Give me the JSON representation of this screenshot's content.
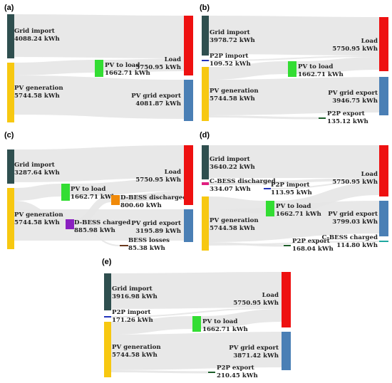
{
  "colors": {
    "grid": "#2f4f4f",
    "pv": "#f7c811",
    "load": "#ee1111",
    "export": "#4a7fb5",
    "pvload": "#33dd33",
    "p2pimport": "#2233bb",
    "p2pexport": "#1d5e2a",
    "dbess_dis": "#f08a0a",
    "dbess_chg": "#8a20c0",
    "bess_loss": "#6b3a1e",
    "cbess_dis": "#e02080",
    "cbess_chg": "#20a8a0",
    "link": "#e6e6e6"
  },
  "panels": [
    {
      "label": "(a)",
      "nodes": [
        {
          "key": "grid",
          "name": "Grid import",
          "value": "4088.24 kWh"
        },
        {
          "key": "pv",
          "name": "PV generation",
          "value": "5744.58 kWh"
        },
        {
          "key": "pvload",
          "name": "PV to load",
          "value": "1662.71 kWh"
        },
        {
          "key": "load",
          "name": "Load",
          "value": "5750.95 kWh"
        },
        {
          "key": "export",
          "name": "PV grid export",
          "value": "4081.87 kWh"
        }
      ]
    },
    {
      "label": "(b)",
      "nodes": [
        {
          "key": "grid",
          "name": "Grid import",
          "value": "3978.72 kWh"
        },
        {
          "key": "p2pimport",
          "name": "P2P import",
          "value": "109.52 kWh"
        },
        {
          "key": "pv",
          "name": "PV generation",
          "value": "5744.58 kWh"
        },
        {
          "key": "pvload",
          "name": "PV to load",
          "value": "1662.71 kWh"
        },
        {
          "key": "load",
          "name": "Load",
          "value": "5750.95 kWh"
        },
        {
          "key": "export",
          "name": "PV grid export",
          "value": "3946.75 kWh"
        },
        {
          "key": "p2pexport",
          "name": "P2P export",
          "value": "135.12 kWh"
        }
      ]
    },
    {
      "label": "(c)",
      "nodes": [
        {
          "key": "grid",
          "name": "Grid import",
          "value": "3287.64 kWh"
        },
        {
          "key": "pv",
          "name": "PV generation",
          "value": "5744.58 kWh"
        },
        {
          "key": "pvload",
          "name": "PV to load",
          "value": "1662.71 kWh"
        },
        {
          "key": "dbess_dis",
          "name": "D-BESS discharged",
          "value": "800.60 kWh"
        },
        {
          "key": "dbess_chg",
          "name": "D-BESS charged",
          "value": "885.98 kWh"
        },
        {
          "key": "load",
          "name": "Load",
          "value": "5750.95 kWh"
        },
        {
          "key": "export",
          "name": "PV grid export",
          "value": "3195.89 kWh"
        },
        {
          "key": "bess_loss",
          "name": "BESS losses",
          "value": "85.38 kWh"
        }
      ]
    },
    {
      "label": "(d)",
      "nodes": [
        {
          "key": "grid",
          "name": "Grid import",
          "value": "3640.22 kWh"
        },
        {
          "key": "cbess_dis",
          "name": "C-BESS discharged",
          "value": "334.07 kWh"
        },
        {
          "key": "p2pimport",
          "name": "P2P import",
          "value": "113.95 kWh"
        },
        {
          "key": "pv",
          "name": "PV generation",
          "value": "5744.58 kWh"
        },
        {
          "key": "pvload",
          "name": "PV to load",
          "value": "1662.71 kWh"
        },
        {
          "key": "load",
          "name": "Load",
          "value": "5750.95 kWh"
        },
        {
          "key": "export",
          "name": "PV grid export",
          "value": "3799.03 kWh"
        },
        {
          "key": "p2pexport",
          "name": "P2P export",
          "value": "168.04 kWh"
        },
        {
          "key": "cbess_chg",
          "name": "C-BESS charged",
          "value": "114.80 kWh"
        }
      ]
    },
    {
      "label": "(e)",
      "nodes": [
        {
          "key": "grid",
          "name": "Grid import",
          "value": "3916.98 kWh"
        },
        {
          "key": "p2pimport",
          "name": "P2P import",
          "value": "171.26 kWh"
        },
        {
          "key": "pv",
          "name": "PV generation",
          "value": "5744.58 kWh"
        },
        {
          "key": "pvload",
          "name": "PV to load",
          "value": "1662.71 kWh"
        },
        {
          "key": "load",
          "name": "Load",
          "value": "5750.95 kWh"
        },
        {
          "key": "export",
          "name": "PV grid export",
          "value": "3871.42 kWh"
        },
        {
          "key": "p2pexport",
          "name": "P2P export",
          "value": "210.45 kWh"
        }
      ]
    }
  ]
}
